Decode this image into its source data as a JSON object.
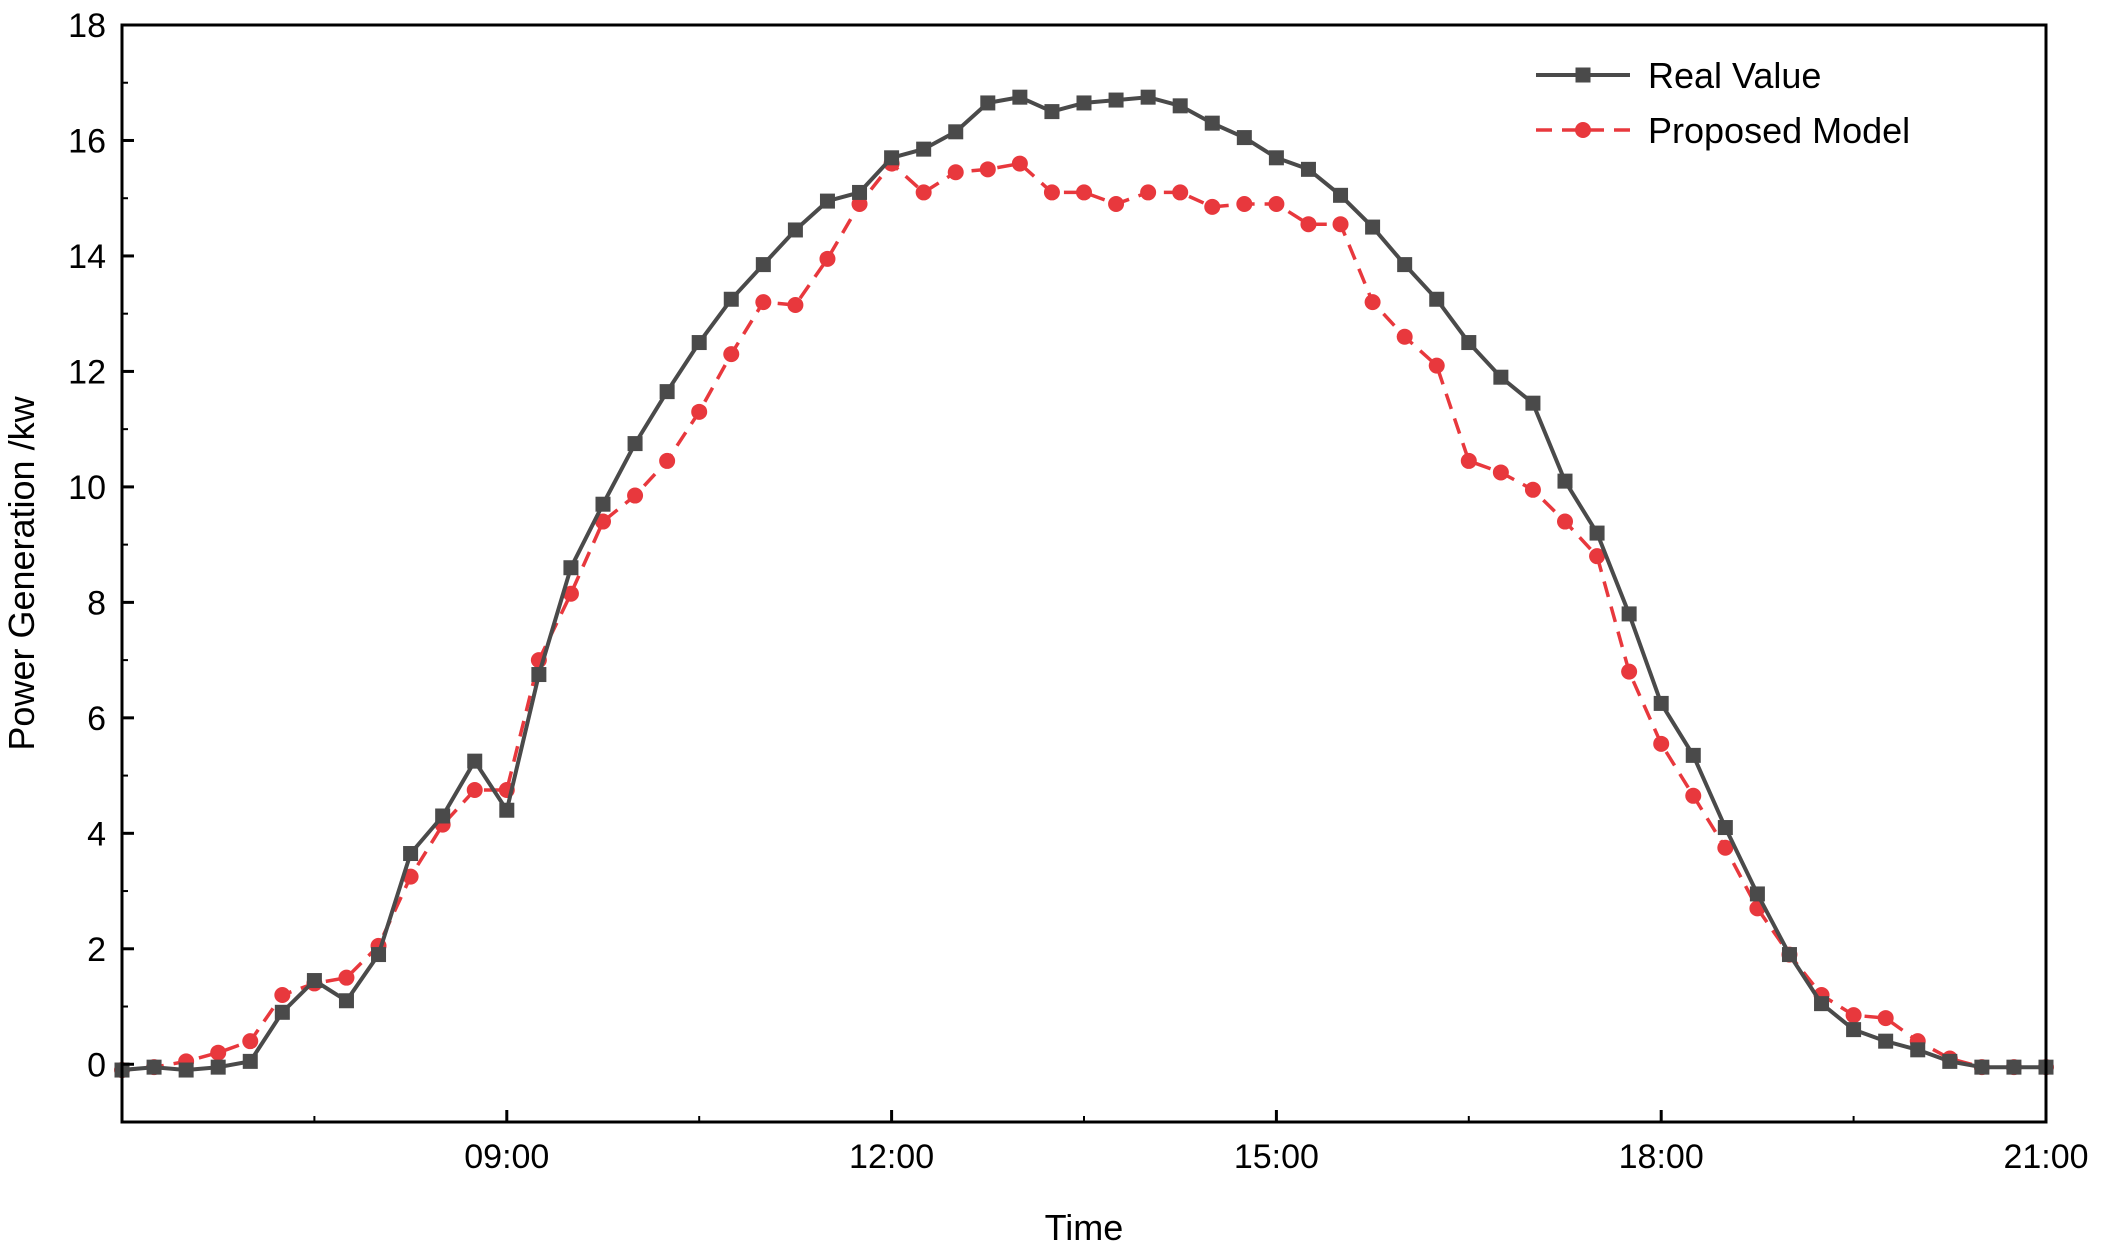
{
  "chart_data": {
    "type": "line",
    "title": "",
    "xlabel": "Time",
    "ylabel": "Power Generation /kw",
    "xlim": [
      6.0,
      21.0
    ],
    "ylim": [
      -1,
      18
    ],
    "x_ticks": [
      {
        "value": 9,
        "label": "09:00"
      },
      {
        "value": 12,
        "label": "12:00"
      },
      {
        "value": 15,
        "label": "15:00"
      },
      {
        "value": 18,
        "label": "18:00"
      },
      {
        "value": 21,
        "label": "21:00"
      }
    ],
    "y_ticks": [
      0,
      2,
      4,
      6,
      8,
      10,
      12,
      14,
      16,
      18
    ],
    "grid": false,
    "legend_position": "top-right",
    "x": [
      6.0,
      6.25,
      6.5,
      6.75,
      7.0,
      7.25,
      7.5,
      7.75,
      8.0,
      8.25,
      8.5,
      8.75,
      9.0,
      9.25,
      9.5,
      9.75,
      10.0,
      10.25,
      10.5,
      10.75,
      11.0,
      11.25,
      11.5,
      11.75,
      12.0,
      12.25,
      12.5,
      12.75,
      13.0,
      13.25,
      13.5,
      13.75,
      14.0,
      14.25,
      14.5,
      14.75,
      15.0,
      15.25,
      15.5,
      15.75,
      16.0,
      16.25,
      16.5,
      16.75,
      17.0,
      17.25,
      17.5,
      17.75,
      18.0,
      18.25,
      18.5,
      18.75,
      19.0,
      19.25,
      19.5,
      19.75,
      20.0,
      20.25,
      20.5,
      20.75,
      21.0
    ],
    "series": [
      {
        "name": "Real Value",
        "color": "#4a4a4a",
        "line_style": "solid",
        "marker": "square",
        "values": [
          -0.1,
          -0.05,
          -0.1,
          -0.05,
          0.05,
          0.9,
          1.45,
          1.1,
          1.9,
          3.65,
          4.3,
          5.25,
          4.4,
          6.75,
          8.6,
          9.7,
          10.75,
          11.65,
          12.5,
          13.25,
          13.85,
          14.45,
          14.95,
          15.1,
          15.7,
          15.85,
          16.15,
          16.65,
          16.75,
          16.5,
          16.65,
          16.7,
          16.75,
          16.6,
          16.3,
          16.05,
          15.7,
          15.5,
          15.05,
          14.5,
          13.85,
          13.25,
          12.5,
          11.9,
          11.45,
          10.1,
          9.2,
          7.8,
          6.25,
          5.35,
          4.1,
          2.95,
          1.9,
          1.05,
          0.6,
          0.4,
          0.25,
          0.05,
          -0.05,
          -0.05,
          -0.05
        ]
      },
      {
        "name": "Proposed Model",
        "color": "#e8383d",
        "line_style": "dashed",
        "marker": "circle",
        "values": [
          -0.1,
          -0.05,
          0.05,
          0.2,
          0.4,
          1.2,
          1.4,
          1.5,
          2.05,
          3.25,
          4.15,
          4.75,
          4.75,
          7.0,
          8.15,
          9.4,
          9.85,
          10.45,
          11.3,
          12.3,
          13.2,
          13.15,
          13.95,
          14.9,
          15.6,
          15.1,
          15.45,
          15.5,
          15.6,
          15.1,
          15.1,
          14.9,
          15.1,
          15.1,
          14.85,
          14.9,
          14.9,
          14.55,
          14.55,
          13.2,
          12.6,
          12.1,
          10.45,
          10.25,
          9.95,
          9.4,
          8.8,
          6.8,
          5.55,
          4.65,
          3.75,
          2.7,
          1.9,
          1.2,
          0.85,
          0.8,
          0.4,
          0.1,
          -0.05,
          -0.05,
          -0.05
        ]
      }
    ]
  }
}
